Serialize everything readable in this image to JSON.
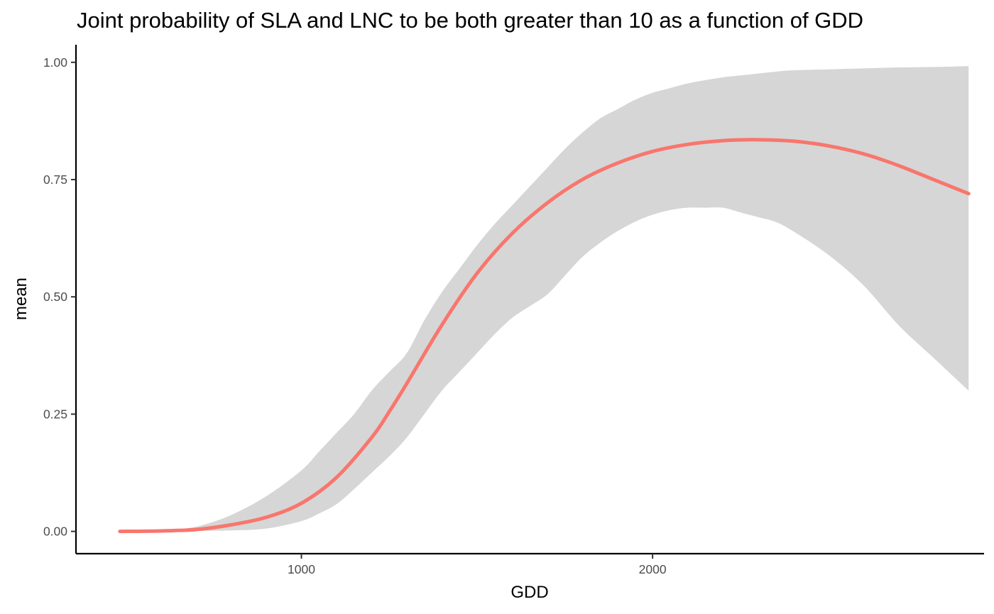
{
  "chart_data": {
    "type": "line",
    "title": "Joint probability of SLA and LNC to be both greater than 10 as a function of GDD",
    "xlabel": "GDD",
    "ylabel": "mean",
    "xlim": [
      358,
      2944
    ],
    "ylim": [
      -0.0475,
      1.0375
    ],
    "x_ticks": [
      1000,
      2000
    ],
    "x_tick_labels": [
      "1000",
      "2000"
    ],
    "y_ticks": [
      0,
      0.25,
      0.5,
      0.75,
      1
    ],
    "y_tick_labels": [
      "0.00",
      "0.25",
      "0.50",
      "0.75",
      "1.00"
    ],
    "grid": false,
    "legend": "none",
    "colors": {
      "line": "#F8766D",
      "ribbon": "#d6d6d6"
    },
    "x": [
      483,
      600,
      700,
      800,
      900,
      1000,
      1100,
      1200,
      1250,
      1300,
      1400,
      1500,
      1600,
      1700,
      1800,
      1900,
      2000,
      2100,
      2200,
      2300,
      2400,
      2500,
      2600,
      2700,
      2800,
      2900
    ],
    "series": [
      {
        "type": "line",
        "values": [
          0.0,
          0.001,
          0.004,
          0.014,
          0.03,
          0.06,
          0.115,
          0.2,
          0.255,
          0.315,
          0.44,
          0.55,
          0.635,
          0.7,
          0.75,
          0.785,
          0.81,
          0.825,
          0.833,
          0.835,
          0.832,
          0.822,
          0.805,
          0.78,
          0.75,
          0.72
        ]
      },
      {
        "type": "ribbon",
        "x": [
          483,
          600,
          700,
          800,
          900,
          1000,
          1050,
          1100,
          1150,
          1200,
          1250,
          1300,
          1350,
          1400,
          1450,
          1500,
          1550,
          1600,
          1650,
          1700,
          1750,
          1800,
          1850,
          1900,
          1950,
          2000,
          2050,
          2100,
          2150,
          2200,
          2250,
          2300,
          2350,
          2400,
          2500,
          2600,
          2700,
          2800,
          2900
        ],
        "lower": [
          0.0,
          0.0,
          0.001,
          0.002,
          0.006,
          0.022,
          0.038,
          0.058,
          0.09,
          0.125,
          0.16,
          0.2,
          0.25,
          0.3,
          0.34,
          0.38,
          0.42,
          0.455,
          0.48,
          0.505,
          0.545,
          0.585,
          0.615,
          0.64,
          0.66,
          0.675,
          0.685,
          0.69,
          0.69,
          0.69,
          0.68,
          0.67,
          0.66,
          0.64,
          0.59,
          0.525,
          0.44,
          0.37,
          0.3
        ],
        "upper": [
          0.0,
          0.002,
          0.01,
          0.035,
          0.075,
          0.13,
          0.17,
          0.21,
          0.25,
          0.3,
          0.34,
          0.38,
          0.45,
          0.51,
          0.56,
          0.61,
          0.655,
          0.695,
          0.735,
          0.775,
          0.815,
          0.85,
          0.88,
          0.9,
          0.92,
          0.935,
          0.945,
          0.955,
          0.962,
          0.968,
          0.972,
          0.976,
          0.98,
          0.983,
          0.985,
          0.987,
          0.989,
          0.99,
          0.992
        ]
      }
    ]
  }
}
